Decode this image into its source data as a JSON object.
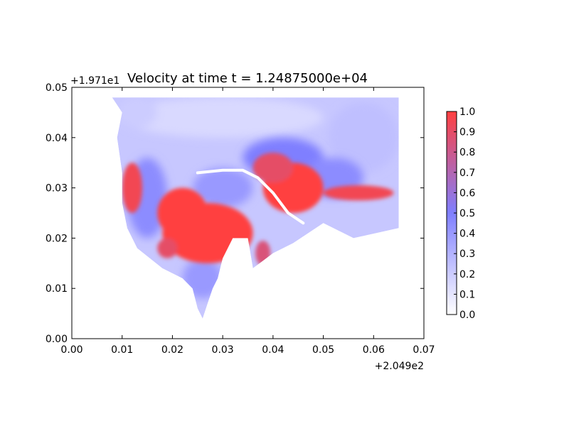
{
  "chart_data": {
    "type": "heatmap",
    "title": "Velocity at time t = 1.24875000e+04",
    "xlabel": "",
    "ylabel": "",
    "x_offset_label": "+2.049e2",
    "y_offset_label": "+1.971e1",
    "xlim": [
      0.0,
      0.07
    ],
    "ylim": [
      0.0,
      0.05
    ],
    "x_ticks": [
      0.0,
      0.01,
      0.02,
      0.03,
      0.04,
      0.05,
      0.06,
      0.07
    ],
    "x_tick_labels": [
      "0.00",
      "0.01",
      "0.02",
      "0.03",
      "0.04",
      "0.05",
      "0.06",
      "0.07"
    ],
    "y_ticks": [
      0.0,
      0.01,
      0.02,
      0.03,
      0.04,
      0.05
    ],
    "y_tick_labels": [
      "0.00",
      "0.01",
      "0.02",
      "0.03",
      "0.04",
      "0.05"
    ],
    "grid": false,
    "colorbar": {
      "min": 0.0,
      "max": 1.0,
      "ticks": [
        0.0,
        0.1,
        0.2,
        0.3,
        0.4,
        0.5,
        0.6,
        0.7,
        0.8,
        0.9,
        1.0
      ],
      "tick_labels": [
        "0.0",
        "0.1",
        "0.2",
        "0.3",
        "0.4",
        "0.5",
        "0.6",
        "0.7",
        "0.8",
        "0.9",
        "1.0"
      ],
      "color_low": "#ffffff",
      "color_mid": "#7f7fff",
      "color_high": "#ff4040"
    },
    "domain_outline": [
      [
        0.008,
        0.048
      ],
      [
        0.065,
        0.048
      ],
      [
        0.065,
        0.022
      ],
      [
        0.056,
        0.02
      ],
      [
        0.05,
        0.023
      ],
      [
        0.044,
        0.019
      ],
      [
        0.04,
        0.017
      ],
      [
        0.036,
        0.014
      ],
      [
        0.035,
        0.02
      ],
      [
        0.032,
        0.02
      ],
      [
        0.03,
        0.016
      ],
      [
        0.029,
        0.012
      ],
      [
        0.028,
        0.01
      ],
      [
        0.027,
        0.007
      ],
      [
        0.026,
        0.004
      ],
      [
        0.025,
        0.006
      ],
      [
        0.024,
        0.01
      ],
      [
        0.022,
        0.012
      ],
      [
        0.018,
        0.014
      ],
      [
        0.013,
        0.018
      ],
      [
        0.011,
        0.022
      ],
      [
        0.01,
        0.027
      ],
      [
        0.01,
        0.033
      ],
      [
        0.009,
        0.04
      ],
      [
        0.01,
        0.045
      ],
      [
        0.008,
        0.048
      ]
    ],
    "high_velocity_regions": [
      {
        "x": 0.027,
        "y": 0.021,
        "value": 1.0,
        "rx": 0.009,
        "ry": 0.006
      },
      {
        "x": 0.022,
        "y": 0.025,
        "value": 1.0,
        "rx": 0.005,
        "ry": 0.005
      },
      {
        "x": 0.012,
        "y": 0.03,
        "value": 0.95,
        "rx": 0.002,
        "ry": 0.005
      },
      {
        "x": 0.044,
        "y": 0.03,
        "value": 1.0,
        "rx": 0.006,
        "ry": 0.005
      },
      {
        "x": 0.04,
        "y": 0.034,
        "value": 0.9,
        "rx": 0.004,
        "ry": 0.003
      },
      {
        "x": 0.057,
        "y": 0.029,
        "value": 0.95,
        "rx": 0.007,
        "ry": 0.0015
      },
      {
        "x": 0.038,
        "y": 0.017,
        "value": 0.85,
        "rx": 0.0015,
        "ry": 0.0025
      },
      {
        "x": 0.019,
        "y": 0.018,
        "value": 0.9,
        "rx": 0.002,
        "ry": 0.002
      }
    ],
    "medium_velocity_regions": [
      {
        "x": 0.042,
        "y": 0.036,
        "value": 0.5,
        "rx": 0.008,
        "ry": 0.004
      },
      {
        "x": 0.03,
        "y": 0.03,
        "value": 0.4,
        "rx": 0.006,
        "ry": 0.004
      },
      {
        "x": 0.015,
        "y": 0.028,
        "value": 0.45,
        "rx": 0.004,
        "ry": 0.008
      },
      {
        "x": 0.026,
        "y": 0.012,
        "value": 0.4,
        "rx": 0.004,
        "ry": 0.004
      },
      {
        "x": 0.052,
        "y": 0.032,
        "value": 0.45,
        "rx": 0.006,
        "ry": 0.004
      }
    ],
    "low_velocity_regions": [
      {
        "x": 0.03,
        "y": 0.044,
        "value": 0.15,
        "rx": 0.02,
        "ry": 0.004
      },
      {
        "x": 0.058,
        "y": 0.04,
        "value": 0.25,
        "rx": 0.007,
        "ry": 0.007
      },
      {
        "x": 0.013,
        "y": 0.045,
        "value": 0.2,
        "rx": 0.004,
        "ry": 0.003
      }
    ],
    "white_channel": [
      [
        0.025,
        0.033
      ],
      [
        0.03,
        0.0335
      ],
      [
        0.034,
        0.0335
      ],
      [
        0.037,
        0.032
      ],
      [
        0.04,
        0.029
      ],
      [
        0.043,
        0.025
      ],
      [
        0.046,
        0.023
      ]
    ]
  }
}
